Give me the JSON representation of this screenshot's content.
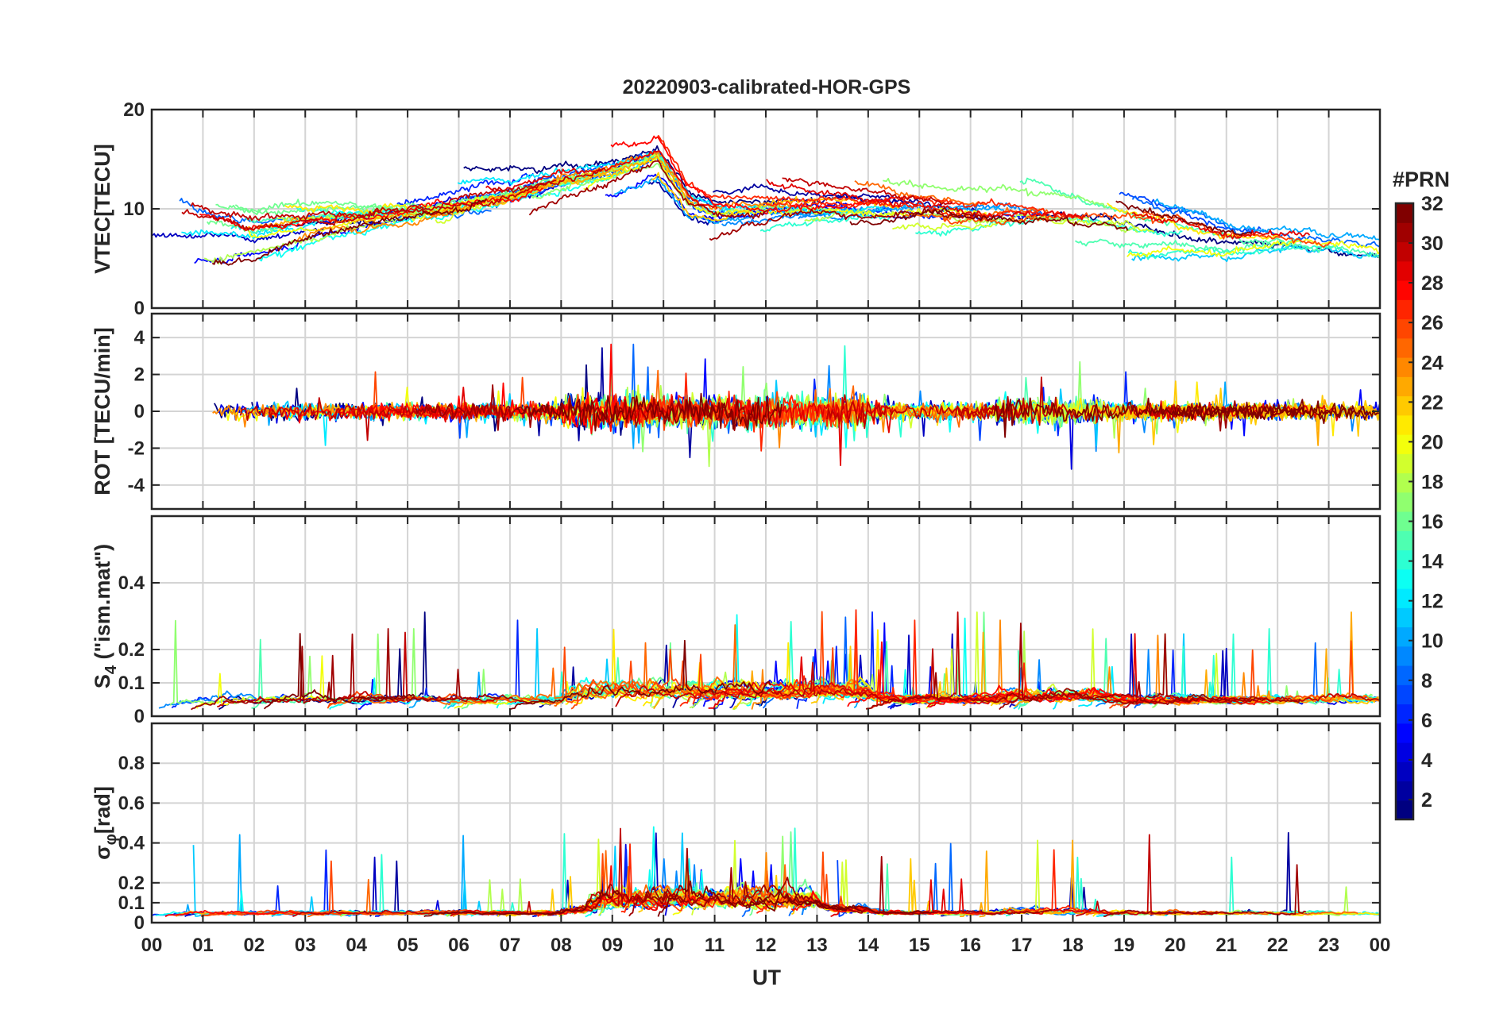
{
  "chart_data": {
    "type": "line",
    "title": "20220903-calibrated-HOR-GPS",
    "xlabel": "UT",
    "x_tick_labels": [
      "00",
      "01",
      "02",
      "03",
      "04",
      "05",
      "06",
      "07",
      "08",
      "09",
      "10",
      "11",
      "12",
      "13",
      "14",
      "15",
      "16",
      "17",
      "18",
      "19",
      "20",
      "21",
      "22",
      "23",
      "00"
    ],
    "xlim_hours": [
      0,
      24
    ],
    "grid": true,
    "panels": [
      {
        "id": "vtec",
        "ylabel": "VTEC[TECU]",
        "ylim": [
          0,
          20
        ],
        "y_ticks": [
          {
            "v": 0,
            "label": "0"
          },
          {
            "v": 10,
            "label": "10"
          },
          {
            "v": 20,
            "label": "20"
          }
        ],
        "envelope": [
          [
            0,
            8.5
          ],
          [
            1,
            8
          ],
          [
            2,
            7.5
          ],
          [
            3,
            8.5
          ],
          [
            4,
            9
          ],
          [
            5,
            9.5
          ],
          [
            6,
            10.5
          ],
          [
            7,
            11.5
          ],
          [
            8,
            13
          ],
          [
            9,
            14
          ],
          [
            9.9,
            15.5
          ],
          [
            10.5,
            11
          ],
          [
            11,
            10
          ],
          [
            12,
            10.5
          ],
          [
            13,
            10.5
          ],
          [
            14,
            10.5
          ],
          [
            15,
            10.5
          ],
          [
            16,
            10
          ],
          [
            17,
            10
          ],
          [
            18,
            9.5
          ],
          [
            19,
            8.5
          ],
          [
            20,
            8
          ],
          [
            21,
            7
          ],
          [
            22,
            7
          ],
          [
            23,
            6.5
          ],
          [
            24,
            6
          ]
        ]
      },
      {
        "id": "rot",
        "ylabel": "ROT [TECU/min]",
        "ylim": [
          -5.3,
          5.3
        ],
        "y_ticks": [
          {
            "v": -4,
            "label": "-4"
          },
          {
            "v": -2,
            "label": "-2"
          },
          {
            "v": 0,
            "label": "0"
          },
          {
            "v": 2,
            "label": "2"
          },
          {
            "v": 4,
            "label": "4"
          }
        ]
      },
      {
        "id": "s4",
        "ylabel": "S4 (\"ism.mat\")",
        "ylabel_main": "S",
        "ylabel_sub": "4",
        "ylabel_rest": " (\"ism.mat\")",
        "ylim": [
          0,
          0.6
        ],
        "y_ticks": [
          {
            "v": 0,
            "label": "0"
          },
          {
            "v": 0.1,
            "label": "0.1"
          },
          {
            "v": 0.2,
            "label": "0.2"
          },
          {
            "v": 0.4,
            "label": "0.4"
          }
        ]
      },
      {
        "id": "sigphi",
        "ylabel": "σφ[rad]",
        "ylabel_main": "σ",
        "ylabel_sub": "φ",
        "ylabel_rest": "[rad]",
        "ylim": [
          0,
          1
        ],
        "y_ticks": [
          {
            "v": 0,
            "label": "0"
          },
          {
            "v": 0.1,
            "label": "0.1"
          },
          {
            "v": 0.2,
            "label": "0.2"
          },
          {
            "v": 0.4,
            "label": "0.4"
          },
          {
            "v": 0.6,
            "label": "0.6"
          },
          {
            "v": 0.8,
            "label": "0.8"
          }
        ]
      }
    ],
    "colorbar": {
      "title": "#PRN",
      "range": [
        1,
        32
      ],
      "colormap": "jet",
      "tick_labels": [
        "2",
        "4",
        "6",
        "8",
        "10",
        "12",
        "14",
        "16",
        "18",
        "20",
        "22",
        "24",
        "26",
        "28",
        "30",
        "32"
      ]
    },
    "series_count": 32,
    "series_names": [
      "PRN 1",
      "PRN 2",
      "PRN 3",
      "PRN 4",
      "PRN 5",
      "PRN 6",
      "PRN 7",
      "PRN 8",
      "PRN 9",
      "PRN 10",
      "PRN 11",
      "PRN 12",
      "PRN 13",
      "PRN 14",
      "PRN 15",
      "PRN 16",
      "PRN 17",
      "PRN 18",
      "PRN 19",
      "PRN 20",
      "PRN 21",
      "PRN 22",
      "PRN 23",
      "PRN 24",
      "PRN 25",
      "PRN 26",
      "PRN 27",
      "PRN 28",
      "PRN 29",
      "PRN 30",
      "PRN 31",
      "PRN 32"
    ]
  }
}
